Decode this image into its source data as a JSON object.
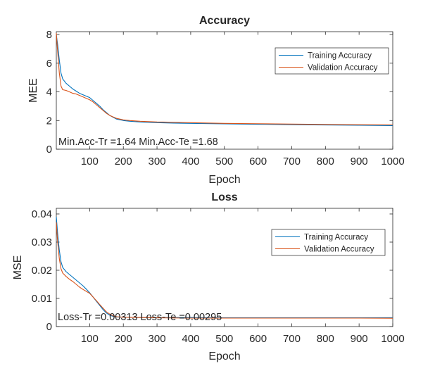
{
  "chart_data": [
    {
      "type": "line",
      "title": "Accuracy",
      "xlabel": "Epoch",
      "ylabel": "MEE",
      "xlim": [
        1,
        1000
      ],
      "ylim": [
        0,
        8.2
      ],
      "xticks": [
        100,
        200,
        300,
        400,
        500,
        600,
        700,
        800,
        900,
        1000
      ],
      "yticks": [
        0,
        2,
        4,
        6,
        8
      ],
      "annotation": "Min.Acc-Tr =1.64 Min.Acc-Te =1.68",
      "legend_position": "top-right",
      "series": [
        {
          "name": "Training Accuracy",
          "color": "#0072BD",
          "x": [
            1,
            5,
            10,
            15,
            20,
            30,
            40,
            50,
            60,
            70,
            80,
            90,
            100,
            110,
            120,
            130,
            140,
            150,
            160,
            180,
            200,
            220,
            250,
            300,
            350,
            400,
            500,
            600,
            700,
            800,
            900,
            1000
          ],
          "y": [
            8.0,
            7.3,
            6.2,
            5.3,
            4.9,
            4.6,
            4.4,
            4.2,
            4.05,
            3.9,
            3.8,
            3.7,
            3.6,
            3.4,
            3.2,
            3.0,
            2.75,
            2.55,
            2.35,
            2.1,
            2.0,
            1.95,
            1.9,
            1.85,
            1.82,
            1.8,
            1.77,
            1.74,
            1.71,
            1.69,
            1.67,
            1.65
          ]
        },
        {
          "name": "Validation  Accuracy",
          "color": "#D95319",
          "x": [
            1,
            5,
            10,
            15,
            20,
            30,
            40,
            50,
            60,
            70,
            80,
            90,
            100,
            110,
            120,
            130,
            140,
            150,
            160,
            180,
            200,
            220,
            250,
            300,
            350,
            400,
            500,
            600,
            700,
            800,
            900,
            1000
          ],
          "y": [
            8.1,
            6.8,
            5.3,
            4.4,
            4.15,
            4.1,
            4.0,
            3.9,
            3.85,
            3.75,
            3.65,
            3.55,
            3.45,
            3.3,
            3.1,
            2.9,
            2.7,
            2.5,
            2.35,
            2.15,
            2.05,
            2.0,
            1.95,
            1.9,
            1.88,
            1.85,
            1.8,
            1.78,
            1.75,
            1.73,
            1.71,
            1.7
          ]
        }
      ]
    },
    {
      "type": "line",
      "title": "Loss",
      "xlabel": "Epoch",
      "ylabel": "MSE",
      "xlim": [
        1,
        1000
      ],
      "ylim": [
        0,
        0.042
      ],
      "xticks": [
        100,
        200,
        300,
        400,
        500,
        600,
        700,
        800,
        900,
        1000
      ],
      "yticks": [
        0,
        0.01,
        0.02,
        0.03,
        0.04
      ],
      "annotation": "Loss-Tr =0.00313 Loss-Te =0.00295",
      "legend_position": "top-right",
      "series": [
        {
          "name": "Training Accuracy",
          "color": "#0072BD",
          "x": [
            1,
            5,
            10,
            15,
            20,
            30,
            40,
            50,
            60,
            70,
            80,
            90,
            100,
            110,
            120,
            130,
            140,
            150,
            160,
            170,
            180,
            200,
            250,
            300,
            400,
            500,
            600,
            700,
            800,
            900,
            1000
          ],
          "y": [
            0.039,
            0.033,
            0.027,
            0.023,
            0.021,
            0.0195,
            0.0185,
            0.0175,
            0.0165,
            0.0155,
            0.0145,
            0.0133,
            0.012,
            0.0105,
            0.009,
            0.0075,
            0.006,
            0.0048,
            0.004,
            0.0036,
            0.0034,
            0.0033,
            0.0032,
            0.0032,
            0.0032,
            0.0031,
            0.0031,
            0.0031,
            0.0031,
            0.0031,
            0.00313
          ]
        },
        {
          "name": "Validation  Accuracy",
          "color": "#D95319",
          "x": [
            1,
            5,
            10,
            15,
            20,
            30,
            40,
            50,
            60,
            70,
            80,
            90,
            100,
            110,
            120,
            130,
            140,
            150,
            160,
            170,
            180,
            200,
            250,
            300,
            400,
            500,
            600,
            700,
            800,
            900,
            1000
          ],
          "y": [
            0.037,
            0.03,
            0.024,
            0.0205,
            0.019,
            0.0178,
            0.0168,
            0.016,
            0.015,
            0.014,
            0.0132,
            0.0125,
            0.0118,
            0.0105,
            0.0092,
            0.0078,
            0.0065,
            0.0052,
            0.0044,
            0.0038,
            0.0035,
            0.0033,
            0.0032,
            0.0031,
            0.003,
            0.003,
            0.003,
            0.003,
            0.003,
            0.003,
            0.00295
          ]
        }
      ]
    }
  ]
}
